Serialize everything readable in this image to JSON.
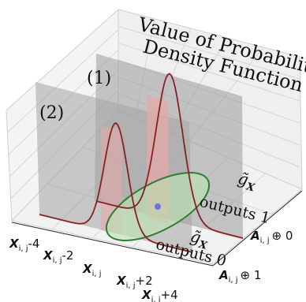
{
  "title": {
    "line1": "Value of Probability",
    "line2": "Density Function"
  },
  "curve_labels": {
    "one": "(1)",
    "two": "(2)"
  },
  "gx_labels": [
    {
      "symbol": "g̃",
      "sub": "X",
      "text": "outputs 1"
    },
    {
      "symbol": "g̃",
      "sub": "X",
      "text": "outputs 0"
    }
  ],
  "x_ticks": [
    {
      "main": "X",
      "sub": "i, j",
      "suffix": "-4"
    },
    {
      "main": "X",
      "sub": "i, j",
      "suffix": "-2"
    },
    {
      "main": "X",
      "sub": "i, j",
      "suffix": ""
    },
    {
      "main": "X",
      "sub": "i, j",
      "suffix": "+2"
    },
    {
      "main": "X",
      "sub": "i, j",
      "suffix": "+4"
    }
  ],
  "y_ticks": [
    {
      "main": "A",
      "sub": "i, j",
      "op": "⊕ 0"
    },
    {
      "main": "A",
      "sub": "i, j",
      "op": "⊕ 1"
    }
  ],
  "colors": {
    "curve": "#8b2020",
    "fill": "#e8a8a8",
    "plane": "#9a9a9a",
    "ellipse": "#2e7d32",
    "ellipse_fill": "#b9e4b0",
    "dot": "#6f74d8",
    "grid": "#d8d8d8",
    "pane": "#eeeeee"
  }
}
